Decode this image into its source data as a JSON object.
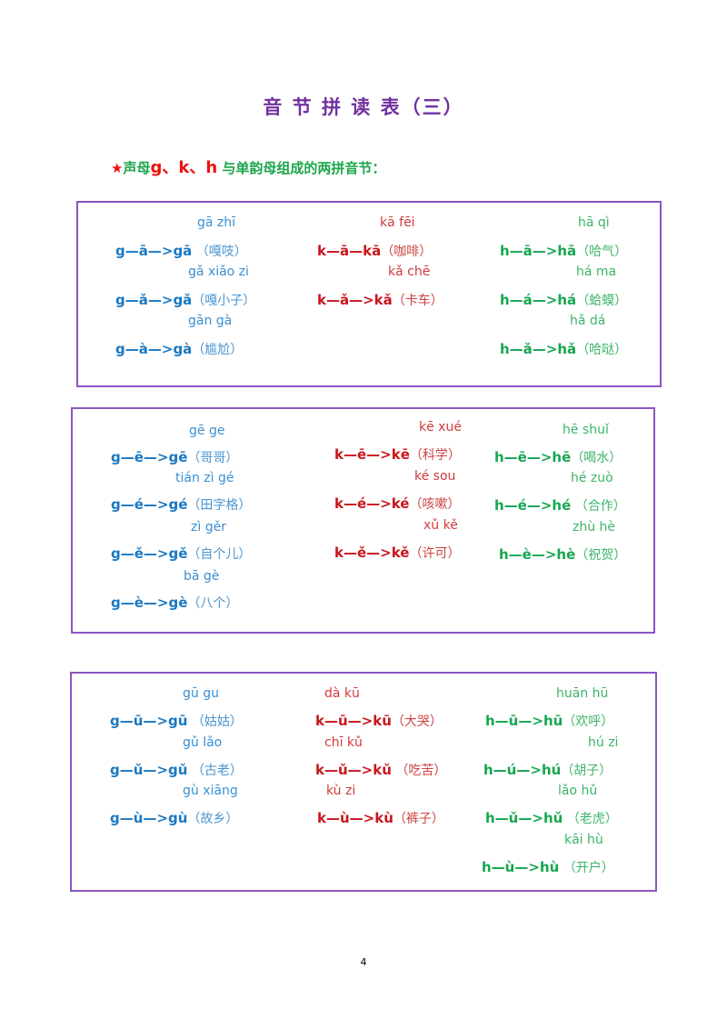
{
  "title": "音 节 拼 读 表（三）",
  "subtitle": {
    "star": "★",
    "part1": "声母",
    "letters": "g、k、h",
    "part2": " 与单韵母组成的两拼音节："
  },
  "colors": {
    "title": "#7030a0",
    "g": "#1a78c2",
    "k": "#c8161d",
    "h": "#17a650",
    "border": "#8a56c2"
  },
  "boxes": [
    {
      "g": [
        {
          "pinyin": "gā zhī",
          "formula": "g—ā—>",
          "result": "gā",
          "word": " （嘎吱）"
        },
        {
          "pinyin": "gǎ xiǎo zi",
          "formula": "g—ǎ—>",
          "result": "gǎ",
          "word": "（嘎小子）"
        },
        {
          "pinyin": "gān gà",
          "formula": "g—à—>",
          "result": "gà",
          "word": "（尴尬）"
        }
      ],
      "k": [
        {
          "pinyin": "kā fēi",
          "formula": "k—ā—",
          "result": "kā",
          "word": "（咖啡）"
        },
        {
          "pinyin": "kǎ chē",
          "formula": "k—ǎ—>",
          "result": "kǎ",
          "word": "（卡车）"
        }
      ],
      "h": [
        {
          "pinyin": "hā qì",
          "formula": "h—ā—>",
          "result": "hā",
          "word": "（哈气）"
        },
        {
          "pinyin": "há ma",
          "formula": "h—á—>",
          "result": "há",
          "word": "（蛤蟆）"
        },
        {
          "pinyin": "hǎ dá",
          "formula": "h—ǎ—>",
          "result": "hǎ",
          "word": "（哈哒）"
        }
      ]
    },
    {
      "g": [
        {
          "pinyin": "gē ge",
          "formula": "g—ē—>",
          "result": "gē",
          "word": "（哥哥）"
        },
        {
          "pinyin": "tián zì gé",
          "formula": "g—é—>",
          "result": "gé",
          "word": "（田字格）"
        },
        {
          "pinyin": "zì gěr",
          "formula": "g—ě—>",
          "result": "gě",
          "word": "（自个儿）"
        },
        {
          "pinyin": "bā gè",
          "formula": "g—è—>",
          "result": "gè",
          "word": "（八个）"
        }
      ],
      "k": [
        {
          "pinyin": "kē xué",
          "formula": "k—ē—>",
          "result": "kē",
          "word": "（科学）"
        },
        {
          "pinyin": "ké sou",
          "formula": "k—é—>",
          "result": "ké",
          "word": "（咳嗽）"
        },
        {
          "pinyin": "xǔ kě",
          "formula": "k—ě—>",
          "result": "kě",
          "word": "（许可）"
        }
      ],
      "h": [
        {
          "pinyin": "hē shuǐ",
          "formula": "h—ē—>",
          "result": "hē",
          "word": "（喝水）"
        },
        {
          "pinyin": "hé zuò",
          "formula": "h—é—>",
          "result": "hé",
          "word": " （合作）"
        },
        {
          "pinyin": "zhù hè",
          "formula": "h—è—>",
          "result": "hè",
          "word": "（祝贺）"
        }
      ]
    },
    {
      "g": [
        {
          "pinyin": "gū gu",
          "formula": "g—ū—>",
          "result": "gū",
          "word": " （姑姑）"
        },
        {
          "pinyin": "gǔ lǎo",
          "formula": "g—ǔ—>",
          "result": "gǔ",
          "word": " （古老）"
        },
        {
          "pinyin": "gù xiāng",
          "formula": "g—ù—>",
          "result": "gù",
          "word": "（故乡）"
        }
      ],
      "k": [
        {
          "pinyin": "dà kū",
          "formula": "k—ū—>",
          "result": "kū",
          "word": "（大哭）"
        },
        {
          "pinyin": "chī kǔ",
          "formula": "k—ǔ—>",
          "result": "kǔ",
          "word": " （吃苦）"
        },
        {
          "pinyin": "kù zi",
          "formula": "k—ù—>",
          "result": "kù",
          "word": "（裤子）"
        }
      ],
      "h": [
        {
          "pinyin": "huān hū",
          "formula": "h—ū—>",
          "result": "hū",
          "word": "（欢呼）"
        },
        {
          "pinyin": "hú zi",
          "formula": "h—ú—>",
          "result": "hú",
          "word": "（胡子）"
        },
        {
          "pinyin": "lǎo hǔ",
          "formula": "h—ǔ—>",
          "result": "hǔ",
          "word": " （老虎）"
        },
        {
          "pinyin": "kāi hù",
          "formula": "h—ù—>",
          "result": "hù",
          "word": " （开户）"
        }
      ]
    }
  ],
  "page_number": "4"
}
